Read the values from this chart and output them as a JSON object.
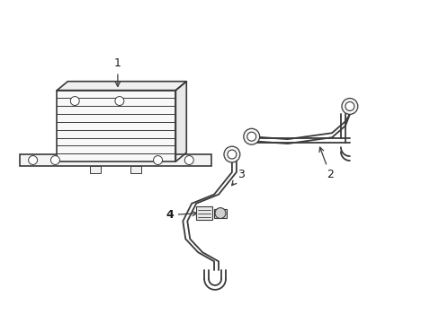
{
  "bg_color": "#ffffff",
  "line_color": "#3a3a3a",
  "label_color": "#1a1a1a",
  "lw_main": 1.2,
  "lw_pipe": 1.3,
  "lw_thin": 0.8
}
